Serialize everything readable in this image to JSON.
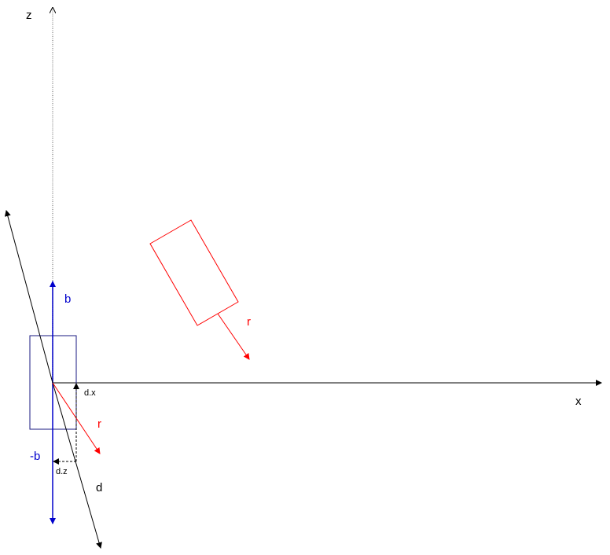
{
  "labels": {
    "z_axis": "z",
    "x_axis": "x",
    "b": "b",
    "neg_b": "-b",
    "r_upper": "r",
    "r_lower": "r",
    "d": "d",
    "dx": "d.x",
    "dz": "d.z"
  },
  "colors": {
    "axis": "#000000",
    "z_axis_dotted": "#9a9a9a",
    "blue": "#0000cc",
    "dark_blue": "#1a1a80",
    "red": "#ff0000"
  }
}
